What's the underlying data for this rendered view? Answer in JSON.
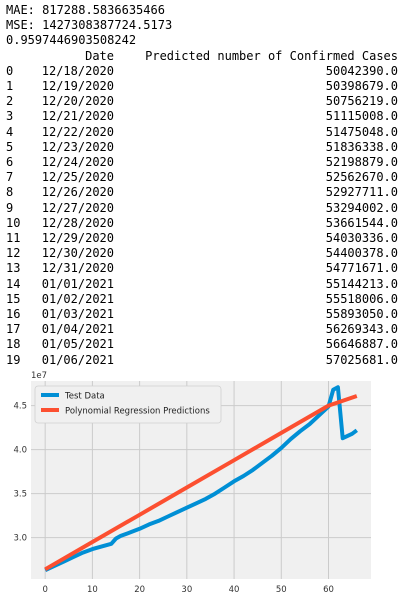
{
  "output_lines": [
    "MAE: 817288.5836635466",
    "MSE: 1427308387724.5173",
    "0.9597446903508242"
  ],
  "table": {
    "columns": [
      "Date",
      "Predicted number of Confirmed Cases"
    ],
    "rows": [
      {
        "index": "0",
        "date": "12/18/2020",
        "value": "50042390.0"
      },
      {
        "index": "1",
        "date": "12/19/2020",
        "value": "50398679.0"
      },
      {
        "index": "2",
        "date": "12/20/2020",
        "value": "50756219.0"
      },
      {
        "index": "3",
        "date": "12/21/2020",
        "value": "51115008.0"
      },
      {
        "index": "4",
        "date": "12/22/2020",
        "value": "51475048.0"
      },
      {
        "index": "5",
        "date": "12/23/2020",
        "value": "51836338.0"
      },
      {
        "index": "6",
        "date": "12/24/2020",
        "value": "52198879.0"
      },
      {
        "index": "7",
        "date": "12/25/2020",
        "value": "52562670.0"
      },
      {
        "index": "8",
        "date": "12/26/2020",
        "value": "52927711.0"
      },
      {
        "index": "9",
        "date": "12/27/2020",
        "value": "53294002.0"
      },
      {
        "index": "10",
        "date": "12/28/2020",
        "value": "53661544.0"
      },
      {
        "index": "11",
        "date": "12/29/2020",
        "value": "54030336.0"
      },
      {
        "index": "12",
        "date": "12/30/2020",
        "value": "54400378.0"
      },
      {
        "index": "13",
        "date": "12/31/2020",
        "value": "54771671.0"
      },
      {
        "index": "14",
        "date": "01/01/2021",
        "value": "55144213.0"
      },
      {
        "index": "15",
        "date": "01/02/2021",
        "value": "55518006.0"
      },
      {
        "index": "16",
        "date": "01/03/2021",
        "value": "55893050.0"
      },
      {
        "index": "17",
        "date": "01/04/2021",
        "value": "56269343.0"
      },
      {
        "index": "18",
        "date": "01/05/2021",
        "value": "56646887.0"
      },
      {
        "index": "19",
        "date": "01/06/2021",
        "value": "57025681.0"
      }
    ]
  },
  "chart_data": {
    "type": "line",
    "offset_label": "1e7",
    "x_ticks": [
      0,
      10,
      20,
      30,
      40,
      50,
      60
    ],
    "y_ticks": [
      3.0,
      3.5,
      4.0,
      4.5
    ],
    "xlim": [
      -3,
      69
    ],
    "ylim": [
      2.53,
      4.78
    ],
    "grid": true,
    "legend_position": "top-left",
    "series": [
      {
        "name": "Test Data",
        "color": "#008fd5",
        "x": [
          0,
          2,
          4,
          6,
          8,
          10,
          12,
          14,
          15,
          16,
          18,
          20,
          22,
          24,
          26,
          28,
          30,
          32,
          34,
          36,
          38,
          40,
          42,
          44,
          46,
          48,
          50,
          52,
          54,
          56,
          58,
          60,
          61,
          62,
          63,
          65,
          66
        ],
        "y": [
          2.63,
          2.68,
          2.73,
          2.78,
          2.83,
          2.87,
          2.9,
          2.93,
          2.99,
          3.02,
          3.06,
          3.1,
          3.15,
          3.19,
          3.24,
          3.29,
          3.34,
          3.39,
          3.44,
          3.5,
          3.57,
          3.64,
          3.7,
          3.77,
          3.85,
          3.93,
          4.02,
          4.12,
          4.21,
          4.29,
          4.39,
          4.49,
          4.68,
          4.71,
          4.13,
          4.18,
          4.22
        ]
      },
      {
        "name": "Polynomial Regression Predictions",
        "color": "#fc4f30",
        "x": [
          0,
          10,
          20,
          30,
          40,
          50,
          60,
          66
        ],
        "y": [
          2.64,
          2.95,
          3.26,
          3.57,
          3.88,
          4.19,
          4.5,
          4.61
        ]
      }
    ]
  }
}
